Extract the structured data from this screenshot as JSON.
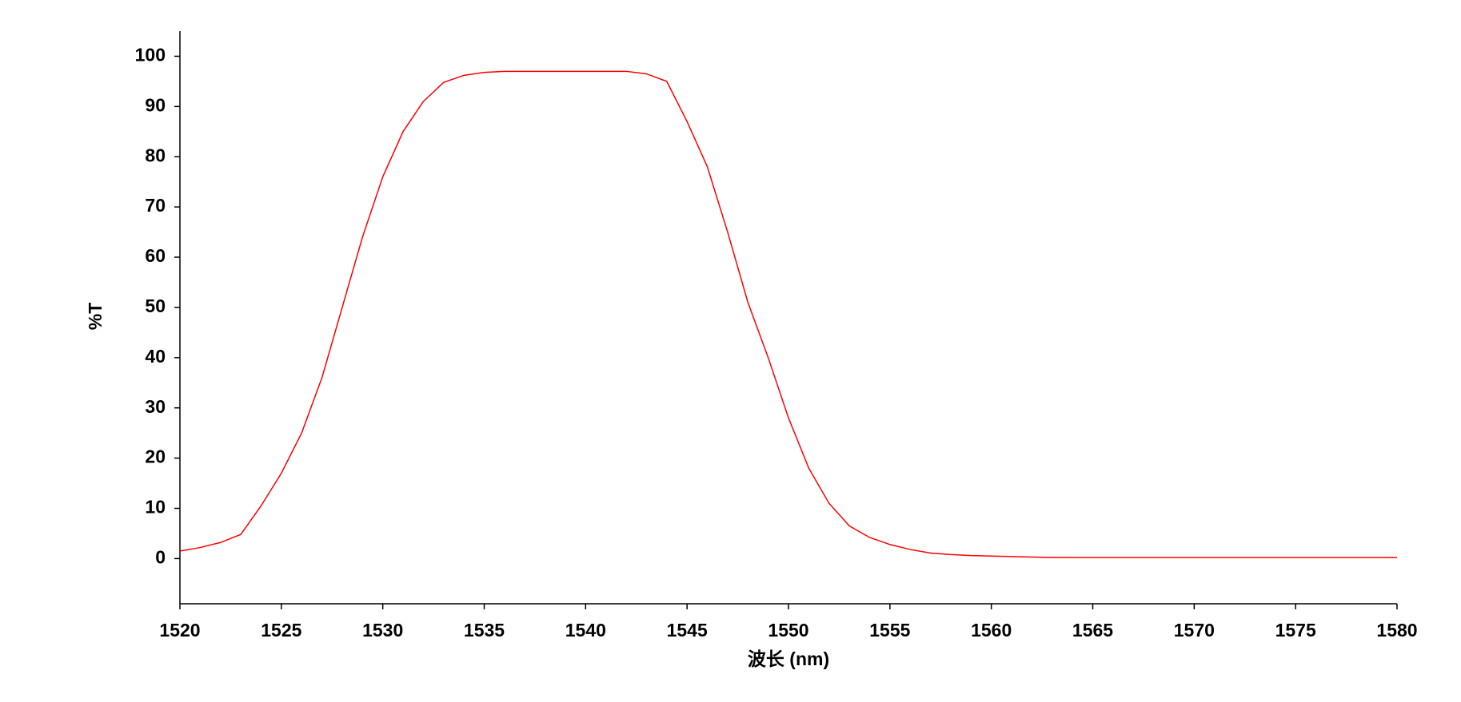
{
  "chart_data": {
    "type": "line",
    "xlabel": "波长 (nm)",
    "ylabel": "%T",
    "x": [
      1520,
      1521,
      1522,
      1523,
      1524,
      1525,
      1526,
      1527,
      1528,
      1529,
      1530,
      1531,
      1532,
      1533,
      1534,
      1535,
      1536,
      1537,
      1538,
      1539,
      1540,
      1541,
      1542,
      1543,
      1544,
      1545,
      1546,
      1547,
      1548,
      1549,
      1550,
      1551,
      1552,
      1553,
      1554,
      1555,
      1556,
      1557,
      1558,
      1559,
      1560,
      1561,
      1562,
      1563,
      1564,
      1565,
      1566,
      1567,
      1568,
      1569,
      1570,
      1571,
      1572,
      1573,
      1574,
      1575,
      1576,
      1577,
      1578,
      1579,
      1580
    ],
    "series": [
      {
        "name": "%T",
        "color": "#ff0000",
        "values": [
          1.5,
          2.2,
          3.2,
          4.8,
          10.5,
          17,
          25,
          36,
          50,
          64,
          76,
          85,
          91,
          94.8,
          96.2,
          96.8,
          97,
          97,
          97,
          97,
          97,
          97,
          97,
          96.5,
          95,
          87,
          78,
          65,
          51,
          40,
          28,
          18,
          11,
          6.5,
          4.2,
          2.8,
          1.8,
          1.1,
          0.8,
          0.6,
          0.5,
          0.4,
          0.3,
          0.2,
          0.2,
          0.2,
          0.2,
          0.2,
          0.2,
          0.2,
          0.2,
          0.2,
          0.2,
          0.2,
          0.2,
          0.2,
          0.2,
          0.2,
          0.2,
          0.2,
          0.2
        ]
      }
    ],
    "xlim": [
      1520,
      1580
    ],
    "xticks": [
      1520,
      1525,
      1530,
      1535,
      1540,
      1545,
      1550,
      1555,
      1560,
      1565,
      1570,
      1575,
      1580
    ],
    "ylim": [
      -9,
      105
    ],
    "yticks": [
      0,
      10,
      20,
      30,
      40,
      50,
      60,
      70,
      80,
      90,
      100
    ],
    "grid": false
  }
}
